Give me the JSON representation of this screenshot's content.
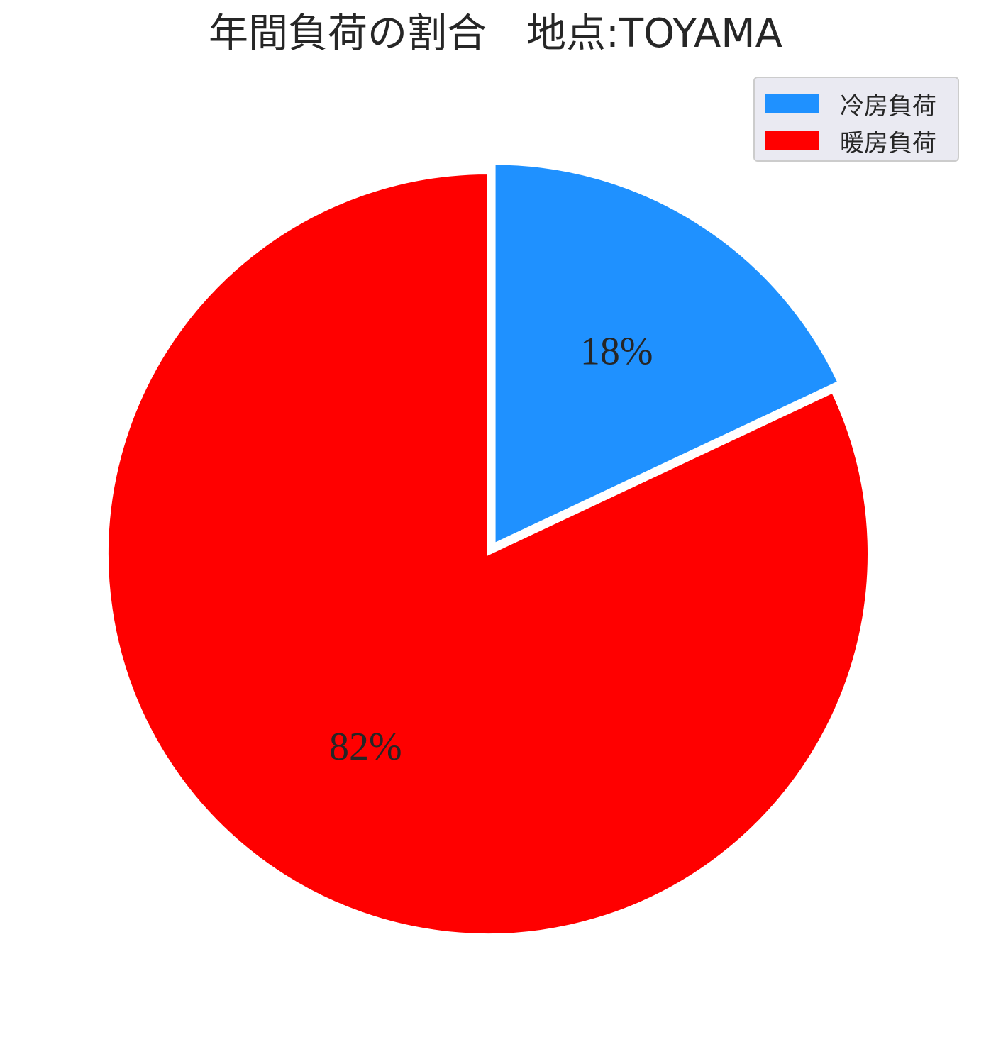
{
  "chart_data": {
    "type": "pie",
    "title": "年間負荷の割合　地点:TOYAMA",
    "categories": [
      "冷房負荷",
      "暖房負荷"
    ],
    "values": [
      18,
      82
    ],
    "value_labels": [
      "18%",
      "82%"
    ],
    "colors": [
      "#1f91ff",
      "#ff0000"
    ],
    "exploded": [
      true,
      false
    ],
    "start_angle_deg": 90,
    "direction": "clockwise",
    "legend_position": "upper-right"
  }
}
